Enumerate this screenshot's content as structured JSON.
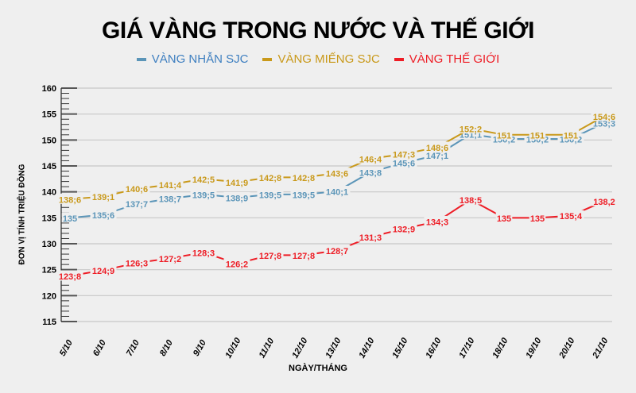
{
  "title": "GIÁ VÀNG TRONG NƯỚC VÀ THẾ GIỚI",
  "legend": [
    {
      "label": "VÀNG NHẪN SJC",
      "color": "#5b95b8",
      "text_color": "#3e7fc0"
    },
    {
      "label": "VÀNG MIẾNG SJC",
      "color": "#c9991a",
      "text_color": "#c9991a"
    },
    {
      "label": "VÀNG THẾ GIỚI",
      "color": "#ee1c25",
      "text_color": "#ee1c25"
    }
  ],
  "axes": {
    "ylabel": "ĐƠN VỊ TÍNH TRIỆU ĐỒNG",
    "xlabel": "NGÀY/THÁNG"
  },
  "chart_data": {
    "type": "line",
    "title": "GIÁ VÀNG TRONG NƯỚC VÀ THẾ GIỚI",
    "xlabel": "NGÀY/THÁNG",
    "ylabel": "ĐƠN VỊ TÍNH TRIỆU ĐỒNG",
    "ylim": [
      115,
      160
    ],
    "yticks": [
      115,
      120,
      125,
      130,
      135,
      140,
      145,
      150,
      155,
      160
    ],
    "grid": true,
    "legend_position": "top",
    "categories": [
      "5/10",
      "6/10",
      "7/10",
      "8/10",
      "9/10",
      "10/10",
      "11/10",
      "12/10",
      "13/10",
      "14/10",
      "15/10",
      "16/10",
      "17/10",
      "18/10",
      "19/10",
      "20/10",
      "21/10"
    ],
    "series": [
      {
        "name": "VÀNG NHẪN SJC",
        "color": "#5b95b8",
        "values": [
          135,
          135.6,
          137.7,
          138.7,
          139.5,
          138.9,
          139.5,
          139.5,
          140.1,
          143.8,
          145.6,
          147.1,
          151.1,
          150.2,
          150.2,
          150.2,
          153.3
        ],
        "labels": [
          "135",
          "135;6",
          "137;7",
          "138;7",
          "139;5",
          "138;9",
          "139;5",
          "139;5",
          "140;1",
          "143;8",
          "145;6",
          "147;1",
          "151;1",
          "150;2",
          "150;2",
          "150;2",
          "153;3"
        ]
      },
      {
        "name": "VÀNG MIẾNG SJC",
        "color": "#c9991a",
        "values": [
          138.6,
          139.1,
          140.6,
          141.4,
          142.5,
          141.9,
          142.8,
          142.8,
          143.6,
          146.4,
          147.3,
          148.6,
          152.2,
          151,
          151,
          151,
          154.6
        ],
        "labels": [
          "138;6",
          "139;1",
          "140;6",
          "141;4",
          "142;5",
          "141;9",
          "142;8",
          "142;8",
          "143;6",
          "146;4",
          "147;3",
          "148;6",
          "152;2",
          "151",
          "151",
          "151",
          "154;6"
        ]
      },
      {
        "name": "VÀNG THẾ GIỚI",
        "color": "#ee1c25",
        "values": [
          123.8,
          124.9,
          126.3,
          127.2,
          128.3,
          126.2,
          127.8,
          127.8,
          128.7,
          131.3,
          132.9,
          134.3,
          138.5,
          135,
          135,
          135.4,
          138.2
        ],
        "labels": [
          "123;8",
          "124;9",
          "126;3",
          "127;2",
          "128;3",
          "126;2",
          "127;8",
          "127;8",
          "128;7",
          "131;3",
          "132;9",
          "134;3",
          "138;5",
          "135",
          "135",
          "135;4",
          "138,2"
        ]
      }
    ]
  }
}
